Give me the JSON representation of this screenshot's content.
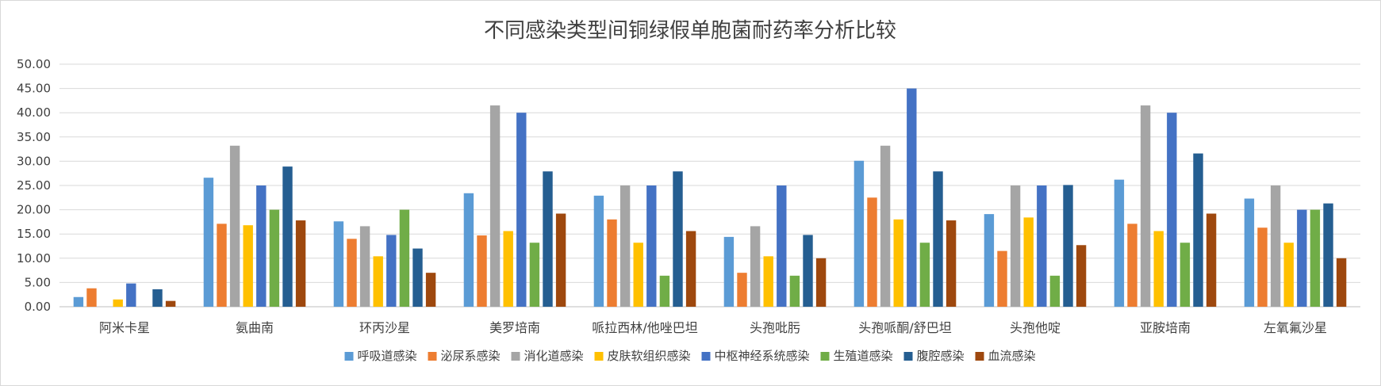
{
  "chart_data": {
    "type": "bar",
    "title": "不同感染类型间铜绿假单胞菌耐药率分析比较",
    "xlabel": "",
    "ylabel": "",
    "ylim": [
      0,
      50
    ],
    "yticks": [
      "0.00",
      "5.00",
      "10.00",
      "15.00",
      "20.00",
      "25.00",
      "30.00",
      "35.00",
      "40.00",
      "45.00",
      "50.00"
    ],
    "grid": true,
    "legend_position": "bottom",
    "categories": [
      "阿米卡星",
      "氨曲南",
      "环丙沙星",
      "美罗培南",
      "哌拉西林/他唑巴坦",
      "头孢吡肟",
      "头孢哌酮/舒巴坦",
      "头孢他啶",
      "亚胺培南",
      "左氧氟沙星"
    ],
    "series": [
      {
        "name": "呼吸道感染",
        "color": "#5B9BD5",
        "values": [
          2.0,
          26.6,
          17.6,
          23.4,
          22.9,
          14.4,
          30.1,
          19.1,
          26.2,
          22.3
        ]
      },
      {
        "name": "泌尿系感染",
        "color": "#ED7D31",
        "values": [
          3.8,
          17.1,
          14.0,
          14.7,
          18.0,
          7.0,
          22.5,
          11.5,
          17.1,
          16.3
        ]
      },
      {
        "name": "消化道感染",
        "color": "#A5A5A5",
        "values": [
          0.0,
          33.2,
          16.6,
          41.5,
          25.0,
          16.6,
          33.2,
          25.0,
          41.5,
          25.0
        ]
      },
      {
        "name": "皮肤软组织感染",
        "color": "#FFC000",
        "values": [
          1.5,
          16.8,
          10.4,
          15.6,
          13.2,
          10.4,
          18.0,
          18.4,
          15.6,
          13.2
        ]
      },
      {
        "name": "中枢神经系统感染",
        "color": "#4472C4",
        "values": [
          4.8,
          25.0,
          14.8,
          40.0,
          25.0,
          25.0,
          45.0,
          25.0,
          40.0,
          20.0
        ]
      },
      {
        "name": "生殖道感染",
        "color": "#70AD47",
        "values": [
          0.0,
          20.0,
          20.0,
          13.2,
          6.4,
          6.4,
          13.2,
          6.4,
          13.2,
          20.0
        ]
      },
      {
        "name": "腹腔感染",
        "color": "#255E91",
        "values": [
          3.6,
          28.9,
          12.0,
          27.9,
          27.9,
          14.8,
          27.9,
          25.1,
          31.6,
          21.3
        ]
      },
      {
        "name": "血流感染",
        "color": "#9E480E",
        "values": [
          1.2,
          17.8,
          7.0,
          19.2,
          15.6,
          10.0,
          17.8,
          12.7,
          19.2,
          10.0
        ]
      }
    ]
  }
}
